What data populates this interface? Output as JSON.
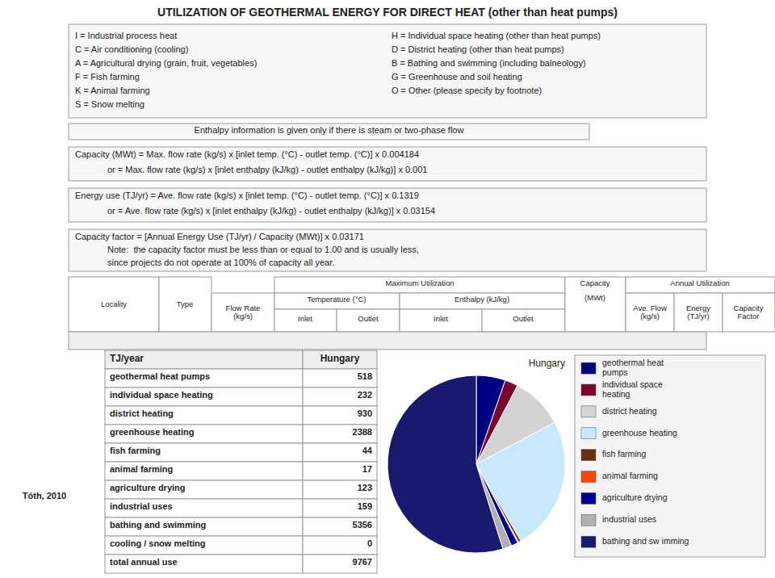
{
  "chart_data": {
    "type": "pie",
    "title": "UTILIZATION OF GEOTHERMAL ENERGY FOR DIRECT HEAT (other than heat pumps)",
    "subtitle": "Hungary",
    "categories": [
      "geothermal heat\npumps",
      "individual space\nheating",
      "district heating",
      "greenhouse heating",
      "fish farming",
      "animal farming",
      "agriculture drying",
      "industrial uses",
      "bathing and sw imming"
    ],
    "values": [
      518,
      232,
      930,
      2388,
      44,
      17,
      123,
      159,
      5356
    ],
    "colors": [
      "#000080",
      "#7B0030",
      "#D3D3D3",
      "#C8E8FF",
      "#6B3010",
      "#FF4500",
      "#000090",
      "#B0B0B0",
      "#191970"
    ],
    "legend": "right",
    "table": {
      "header": [
        "TJ/year",
        "Hungary"
      ],
      "rows": [
        "geothermal heat pumps",
        "individual space heating",
        "district heating",
        "greenhouse heating",
        "fish farming",
        "animal farming",
        "agriculture drying",
        "industrial uses",
        "bathing and swimming",
        "cooling / snow melting",
        "total annual use"
      ],
      "values": [
        518,
        232,
        930,
        2388,
        44,
        17,
        123,
        159,
        5356,
        0,
        9767
      ]
    },
    "annotations": [
      [
        "I = Industrial process heat",
        "C = Air conditioning (cooling)",
        "A = Agricultural drying (grain, fruit, vegetables)",
        "F = Fish farming",
        "K = Animal farming",
        "S = Snow melting"
      ],
      [
        "H = Individual space heating (other than heat pumps)",
        "D = District heating (other than heat pumps)",
        "B = Bathing and swimming (including balneology)",
        "G = Greenhouse and soil heating",
        "O = Other (please specify by footnote)"
      ],
      [
        "Enthalpy information is given only if there is steam or two-phase flow"
      ],
      [
        "Capacity (MWt) = Max. flow rate (kg/s) x [inlet temp. (°C) - outlet temp. (°C)] x 0.004184",
        "or = Max. flow rate (kg/s) x [inlet enthalpy (kJ/kg) - outlet enthalpy (kJ/kg)] x 0.001"
      ],
      [
        "Energy use (TJ/yr) = Ave. flow rate (kg/s) x [inlet temp. (°C) - outlet temp. (°C)] x 0.1319",
        "or = Ave. flow rate (kg/s) x [inlet enthalpy (kJ/kg) - outlet enthalpy (kJ/kg)] x 0.03154"
      ],
      [
        "Capacity factor = [Annual Energy Use (TJ/yr) / Capacity (MWt)] x 0.03171",
        "Note:  the capacity factor must be less than or equal to 1.00 and is usually less,",
        "since projects do not operate at 100% of capacity all year."
      ],
      [
        "Locality",
        "Type",
        "Flow Rate\n(kg/s)",
        "Maximum Utilization",
        "Temperature (°C)",
        "Enthalpy (kJ/kg)",
        "Inlet",
        "Outlet",
        "Inlet",
        "Outlet",
        "Capacity",
        "(MWt)",
        "Annual Utilization",
        "Ave. Flow\n(kg/s)",
        "Energy\n(TJ/yr)",
        "Capacity\nFactor"
      ],
      [
        "Tóth, 2010"
      ]
    ]
  }
}
